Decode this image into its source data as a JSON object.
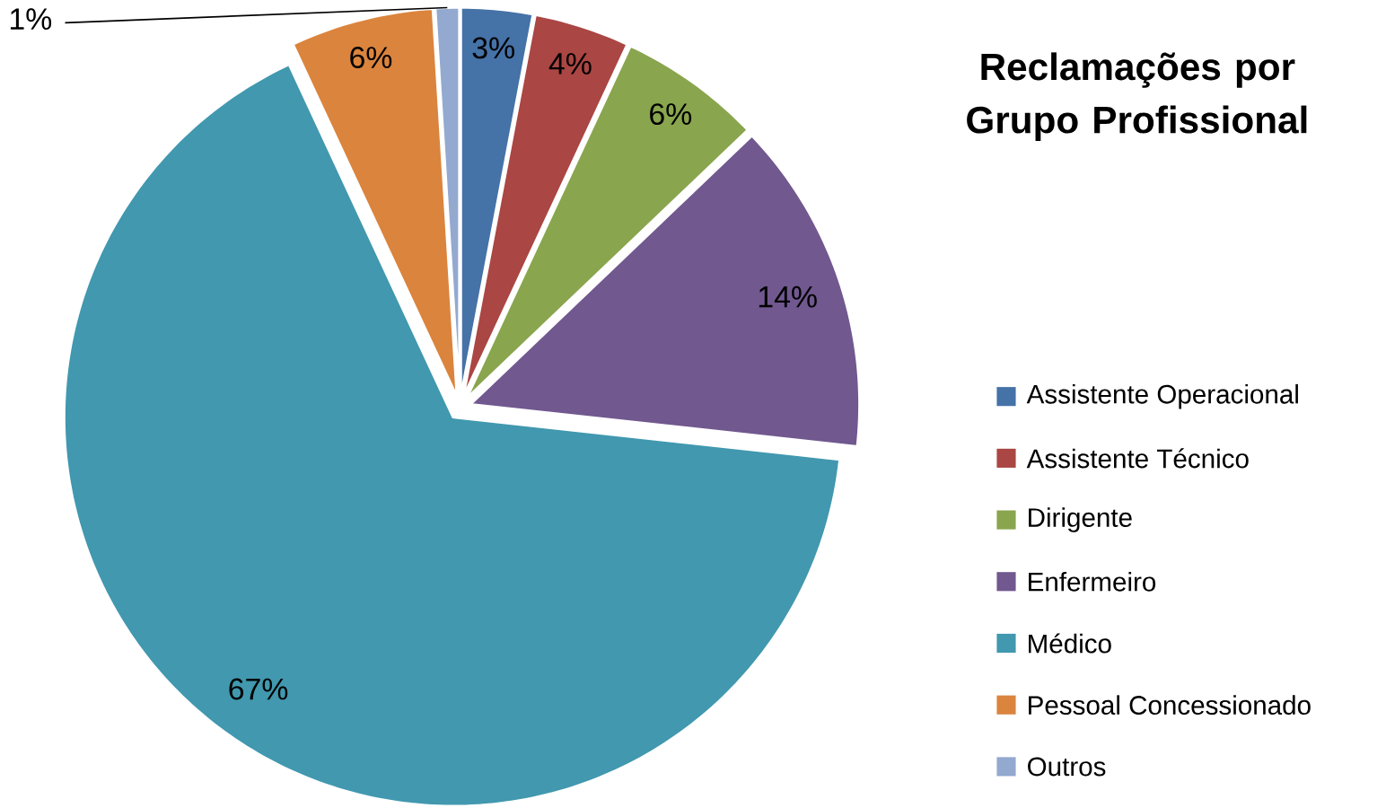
{
  "chart_data": {
    "type": "pie",
    "title": "Reclamações por Grupo Profissional",
    "categories": [
      "Assistente Operacional",
      "Assistente Técnico",
      "Dirigente",
      "Enfermeiro",
      "Médico",
      "Pessoal Concessionado",
      "Outros"
    ],
    "values": [
      3,
      4,
      6,
      14,
      67,
      6,
      1
    ],
    "colors": [
      "#4572a7",
      "#aa4643",
      "#89a54e",
      "#71588f",
      "#4198af",
      "#db843d",
      "#93a9cf"
    ],
    "value_labels": [
      "3%",
      "4%",
      "6%",
      "14%",
      "67%",
      "6%",
      "1%"
    ],
    "legend": "right"
  }
}
